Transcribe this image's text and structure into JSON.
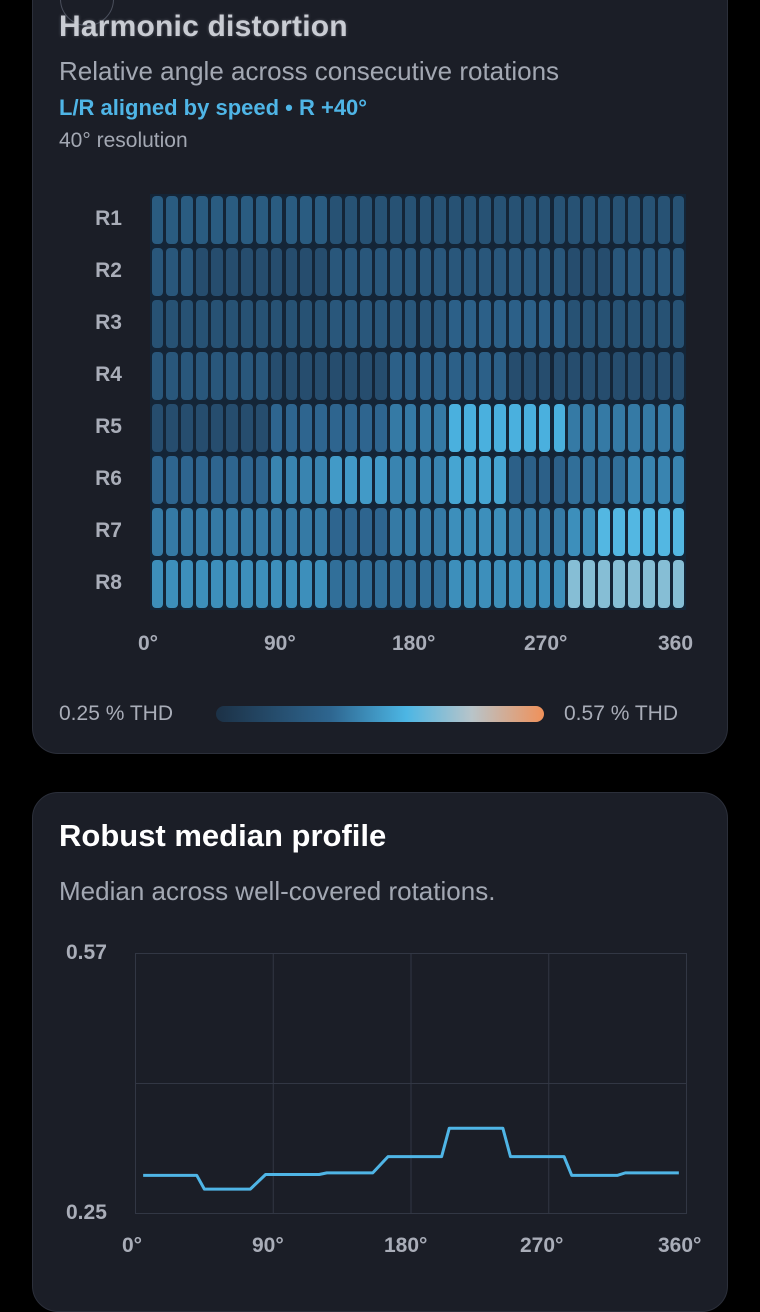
{
  "heatmap_card": {
    "title": "Harmonic distortion",
    "subtitle": "Relative angle across consecutive rotations",
    "alignment": "L/R aligned by speed • R +40°",
    "resolution": "40° resolution",
    "legend": {
      "min_label": "0.25 % THD",
      "max_label": "0.57 % THD"
    }
  },
  "profile_card": {
    "title": "Robust median profile",
    "subtitle": "Median across well-covered rotations."
  },
  "colors": {
    "card_bg": "#1b1e27",
    "accent": "#4fb5e6",
    "line": "#4fb5e6",
    "scale": [
      "#1c3146",
      "#2e6690",
      "#4cb6e4",
      "#b8c4c9",
      "#f0915a"
    ]
  },
  "chart_data": [
    {
      "type": "heatmap",
      "rows": [
        "R1",
        "R2",
        "R3",
        "R4",
        "R5",
        "R6",
        "R7",
        "R8"
      ],
      "x_ticks": [
        "0°",
        "90°",
        "180°",
        "270°",
        "360"
      ],
      "xlim": [
        0,
        360
      ],
      "color_range": [
        0.25,
        0.57
      ],
      "color_unit": "% THD",
      "values": [
        [
          0.34,
          0.34,
          0.34,
          0.34,
          0.34,
          0.34,
          0.34,
          0.34,
          0.34,
          0.34,
          0.34,
          0.34,
          0.32,
          0.32,
          0.32,
          0.32,
          0.32,
          0.32,
          0.32,
          0.32,
          0.32,
          0.32,
          0.32,
          0.32,
          0.32,
          0.32,
          0.32,
          0.32,
          0.32,
          0.32,
          0.32,
          0.32,
          0.32,
          0.32,
          0.32,
          0.32
        ],
        [
          0.33,
          0.33,
          0.33,
          0.31,
          0.31,
          0.31,
          0.31,
          0.31,
          0.31,
          0.31,
          0.31,
          0.31,
          0.33,
          0.33,
          0.33,
          0.33,
          0.33,
          0.33,
          0.33,
          0.33,
          0.33,
          0.33,
          0.33,
          0.33,
          0.33,
          0.33,
          0.33,
          0.33,
          0.31,
          0.31,
          0.31,
          0.33,
          0.33,
          0.33,
          0.33,
          0.33
        ],
        [
          0.32,
          0.32,
          0.32,
          0.32,
          0.32,
          0.32,
          0.32,
          0.32,
          0.32,
          0.32,
          0.32,
          0.32,
          0.33,
          0.33,
          0.33,
          0.33,
          0.33,
          0.33,
          0.33,
          0.33,
          0.35,
          0.35,
          0.35,
          0.35,
          0.35,
          0.35,
          0.35,
          0.35,
          0.32,
          0.32,
          0.32,
          0.32,
          0.32,
          0.32,
          0.32,
          0.32
        ],
        [
          0.33,
          0.33,
          0.33,
          0.33,
          0.33,
          0.33,
          0.33,
          0.33,
          0.31,
          0.31,
          0.31,
          0.31,
          0.31,
          0.31,
          0.31,
          0.31,
          0.35,
          0.35,
          0.35,
          0.35,
          0.35,
          0.35,
          0.35,
          0.35,
          0.31,
          0.31,
          0.31,
          0.31,
          0.31,
          0.31,
          0.31,
          0.31,
          0.31,
          0.31,
          0.31,
          0.31
        ],
        [
          0.31,
          0.31,
          0.31,
          0.31,
          0.31,
          0.31,
          0.31,
          0.31,
          0.36,
          0.36,
          0.36,
          0.36,
          0.36,
          0.36,
          0.36,
          0.36,
          0.38,
          0.38,
          0.38,
          0.38,
          0.43,
          0.43,
          0.43,
          0.43,
          0.43,
          0.43,
          0.43,
          0.43,
          0.38,
          0.38,
          0.38,
          0.38,
          0.38,
          0.38,
          0.38,
          0.38
        ],
        [
          0.36,
          0.36,
          0.36,
          0.36,
          0.36,
          0.36,
          0.36,
          0.36,
          0.39,
          0.39,
          0.39,
          0.39,
          0.41,
          0.41,
          0.41,
          0.41,
          0.39,
          0.39,
          0.39,
          0.39,
          0.42,
          0.42,
          0.42,
          0.42,
          0.35,
          0.35,
          0.35,
          0.35,
          0.37,
          0.37,
          0.37,
          0.37,
          0.39,
          0.39,
          0.39,
          0.39
        ],
        [
          0.38,
          0.38,
          0.38,
          0.38,
          0.38,
          0.38,
          0.38,
          0.38,
          0.38,
          0.38,
          0.38,
          0.38,
          0.36,
          0.36,
          0.36,
          0.36,
          0.38,
          0.38,
          0.38,
          0.38,
          0.4,
          0.4,
          0.4,
          0.4,
          0.38,
          0.38,
          0.38,
          0.38,
          0.4,
          0.4,
          0.44,
          0.44,
          0.44,
          0.44,
          0.44,
          0.44
        ],
        [
          0.4,
          0.4,
          0.4,
          0.4,
          0.4,
          0.4,
          0.4,
          0.4,
          0.4,
          0.4,
          0.4,
          0.4,
          0.37,
          0.37,
          0.37,
          0.37,
          0.37,
          0.37,
          0.37,
          0.37,
          0.4,
          0.4,
          0.4,
          0.4,
          0.4,
          0.4,
          0.4,
          0.4,
          0.47,
          0.47,
          0.47,
          0.47,
          0.47,
          0.47,
          0.47,
          0.47
        ]
      ]
    },
    {
      "type": "line",
      "y_ticks": [
        "0.57",
        "0.25"
      ],
      "x_ticks": [
        "0°",
        "90°",
        "180°",
        "270°",
        "360°"
      ],
      "xlim": [
        0,
        360
      ],
      "ylim": [
        0.25,
        0.57
      ],
      "grid": true,
      "x": [
        5,
        40,
        45,
        75,
        85,
        120,
        125,
        155,
        165,
        200,
        205,
        240,
        245,
        280,
        285,
        315,
        320,
        355
      ],
      "y": [
        0.297,
        0.297,
        0.28,
        0.28,
        0.298,
        0.298,
        0.3,
        0.3,
        0.32,
        0.32,
        0.355,
        0.355,
        0.32,
        0.32,
        0.297,
        0.297,
        0.3,
        0.3
      ]
    }
  ]
}
